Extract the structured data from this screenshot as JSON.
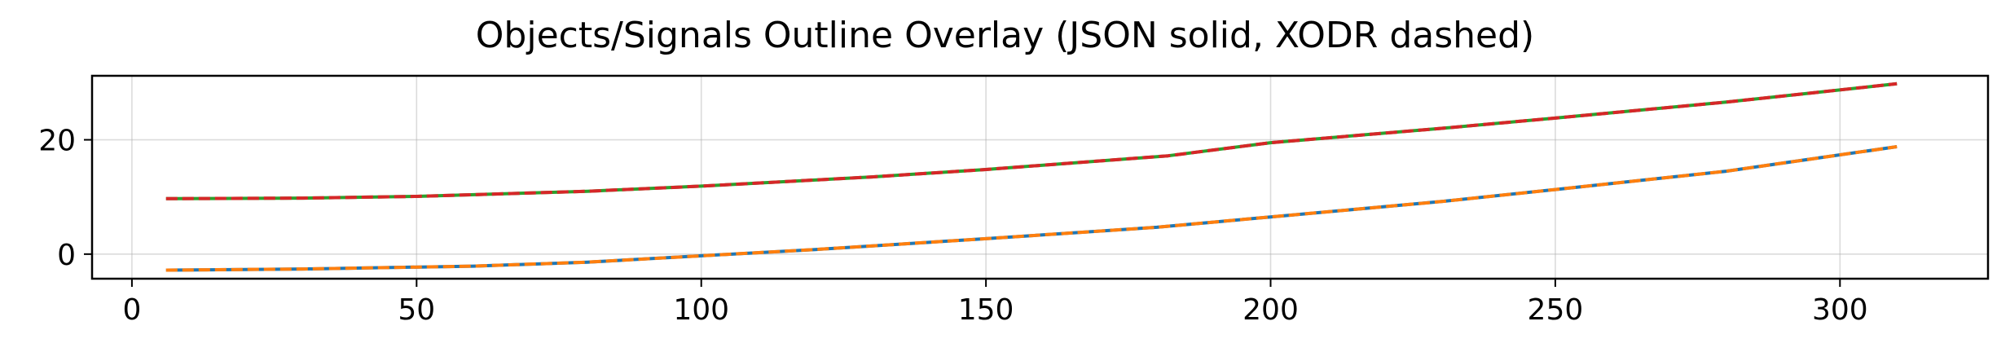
{
  "chart_data": {
    "type": "line",
    "title": "Objects/Signals Outline Overlay (JSON solid, XODR dashed)",
    "xlabel": "",
    "ylabel": "",
    "xlim": [
      -7,
      326
    ],
    "ylim": [
      -4.3,
      31.2
    ],
    "xticks": [
      0,
      50,
      100,
      150,
      200,
      250,
      300
    ],
    "yticks": [
      0,
      20
    ],
    "grid": true,
    "legend": "none",
    "series": [
      {
        "style": "solid",
        "color": "#1f77b4",
        "x": [
          6,
          30,
          60,
          80,
          100,
          120,
          150,
          180,
          200,
          230,
          250,
          280,
          310
        ],
        "y": [
          -2.8,
          -2.6,
          -2.1,
          -1.4,
          -0.3,
          0.8,
          2.7,
          4.7,
          6.5,
          9.2,
          11.3,
          14.5,
          18.8
        ]
      },
      {
        "style": "dashed",
        "color": "#ff7f0e",
        "x": [
          6,
          30,
          60,
          80,
          100,
          120,
          150,
          180,
          200,
          230,
          250,
          280,
          310
        ],
        "y": [
          -2.8,
          -2.6,
          -2.1,
          -1.4,
          -0.3,
          0.8,
          2.7,
          4.7,
          6.5,
          9.2,
          11.3,
          14.5,
          18.8
        ]
      },
      {
        "style": "solid",
        "color": "#2ca02c",
        "x": [
          6,
          30,
          50,
          80,
          100,
          130,
          150,
          182,
          200,
          230,
          250,
          280,
          310
        ],
        "y": [
          9.7,
          9.8,
          10.1,
          11.0,
          11.9,
          13.5,
          14.8,
          17.2,
          19.5,
          22.0,
          23.8,
          26.6,
          29.8
        ]
      },
      {
        "style": "dashed",
        "color": "#d62728",
        "x": [
          6,
          30,
          50,
          80,
          100,
          130,
          150,
          182,
          200,
          230,
          250,
          280,
          310
        ],
        "y": [
          9.7,
          9.8,
          10.1,
          11.0,
          11.9,
          13.5,
          14.8,
          17.2,
          19.5,
          22.0,
          23.8,
          26.6,
          29.8
        ]
      }
    ]
  }
}
